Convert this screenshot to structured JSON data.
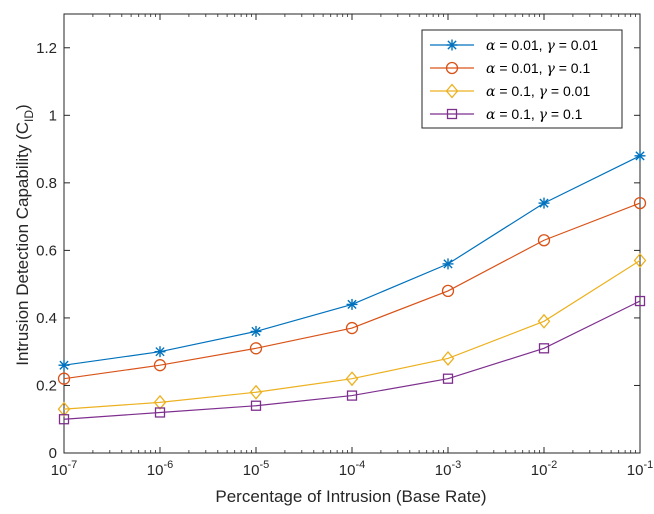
{
  "chart_data": {
    "type": "line",
    "xlabel": "Percentage of Intrusion (Base Rate)",
    "ylabel_main": "Intrusion Detection Capability (C",
    "ylabel_sub": "ID",
    "ylabel_close": ")",
    "x_scale": "log",
    "x_base": "10",
    "x_exponents": [
      "-7",
      "-6",
      "-5",
      "-4",
      "-3",
      "-2",
      "-1"
    ],
    "x": [
      1e-07,
      1e-06,
      1e-05,
      0.0001,
      0.001,
      0.01,
      0.1
    ],
    "ylim": [
      0,
      1.3
    ],
    "yticks": [
      0,
      0.2,
      0.4,
      0.6,
      0.8,
      1,
      1.2
    ],
    "ytick_labels": [
      "0",
      "0.2",
      "0.4",
      "0.6",
      "0.8",
      "1",
      "1.2"
    ],
    "grid": false,
    "legend_position": "top-right",
    "series": [
      {
        "alpha_sym": "α",
        "alpha_text": " = 0.01, ",
        "gamma_sym": "γ",
        "gamma_text": " = 0.01",
        "color": "#0072BD",
        "marker": "asterisk",
        "values": [
          0.26,
          0.3,
          0.36,
          0.44,
          0.56,
          0.74,
          0.88
        ]
      },
      {
        "alpha_sym": "α",
        "alpha_text": " = 0.01, ",
        "gamma_sym": "γ",
        "gamma_text": " = 0.1",
        "color": "#D95319",
        "marker": "circle",
        "values": [
          0.22,
          0.26,
          0.31,
          0.37,
          0.48,
          0.63,
          0.74
        ]
      },
      {
        "alpha_sym": "α",
        "alpha_text": " = 0.1, ",
        "gamma_sym": "γ",
        "gamma_text": " = 0.01",
        "color": "#EDB120",
        "marker": "diamond",
        "values": [
          0.13,
          0.15,
          0.18,
          0.22,
          0.28,
          0.39,
          0.57
        ]
      },
      {
        "alpha_sym": "α",
        "alpha_text": " = 0.1, ",
        "gamma_sym": "γ",
        "gamma_text": " = 0.1",
        "color": "#7E2F8E",
        "marker": "square",
        "values": [
          0.1,
          0.12,
          0.14,
          0.17,
          0.22,
          0.31,
          0.45
        ]
      }
    ]
  }
}
